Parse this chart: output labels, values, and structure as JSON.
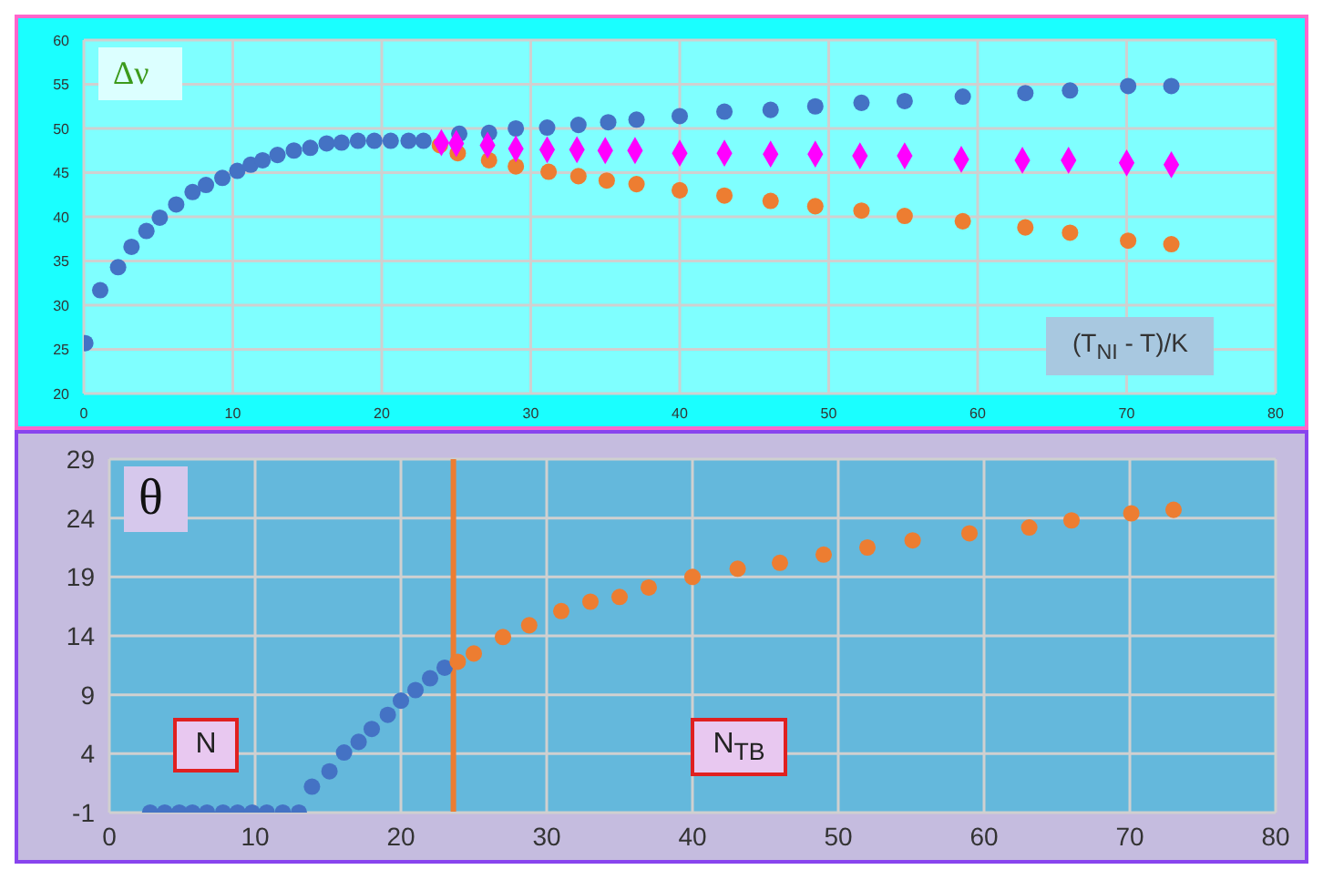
{
  "chart_data": [
    {
      "type": "scatter",
      "title": "Δν",
      "xlabel": "(T$_{NI}$ - T)/K",
      "xlim": [
        0,
        80
      ],
      "xticks": [
        0,
        10,
        20,
        30,
        40,
        50,
        60,
        70,
        80
      ],
      "ylim": [
        20,
        60
      ],
      "yticks": [
        20,
        25,
        30,
        35,
        40,
        45,
        50,
        55,
        60
      ],
      "grid": true,
      "series": [
        {
          "color": "#4472c4",
          "marker": "circle",
          "x": [
            0.1,
            1.1,
            2.3,
            3.2,
            4.2,
            5.1,
            6.2,
            7.3,
            8.2,
            9.3,
            10.3,
            11.2,
            12,
            13,
            14.1,
            15.2,
            16.3,
            17.3,
            18.4,
            19.5,
            20.6,
            21.8,
            22.8,
            25.2,
            27.2,
            29,
            31.1,
            33.2,
            35.2,
            37.1,
            40,
            43,
            46.1,
            49.1,
            52.2,
            55.1,
            59,
            63.2,
            66.2,
            70.1,
            73
          ],
          "values": [
            25.7,
            31.7,
            34.3,
            36.6,
            38.4,
            39.9,
            41.4,
            42.8,
            43.6,
            44.4,
            45.2,
            45.9,
            46.4,
            47,
            47.5,
            47.8,
            48.3,
            48.4,
            48.6,
            48.6,
            48.6,
            48.6,
            48.6,
            49.4,
            49.5,
            50,
            50.1,
            50.4,
            50.7,
            51,
            51.4,
            51.9,
            52.1,
            52.5,
            52.9,
            53.1,
            53.6,
            54,
            54.3,
            54.8,
            54.8
          ]
        },
        {
          "color": "#ed7d31",
          "marker": "circle",
          "x": [
            23.9,
            25.1,
            27.2,
            29,
            31.2,
            33.2,
            35.1,
            37.1,
            40,
            43,
            46.1,
            49.1,
            52.2,
            55.1,
            59,
            63.2,
            66.2,
            70.1,
            73
          ],
          "values": [
            48.1,
            47.2,
            46.4,
            45.7,
            45.1,
            44.6,
            44.1,
            43.7,
            43,
            42.4,
            41.8,
            41.2,
            40.7,
            40.1,
            39.5,
            38.8,
            38.2,
            37.3,
            36.9
          ]
        },
        {
          "color": "#ff00ff",
          "marker": "diamond",
          "x": [
            24,
            25,
            27.1,
            29,
            31.1,
            33.1,
            35,
            37,
            40,
            43,
            46.1,
            49.1,
            52.1,
            55.1,
            58.9,
            63,
            66.1,
            70,
            73
          ],
          "values": [
            48.4,
            48.3,
            48.1,
            47.7,
            47.6,
            47.6,
            47.5,
            47.5,
            47.2,
            47.2,
            47.1,
            47.1,
            46.9,
            46.9,
            46.5,
            46.4,
            46.4,
            46.1,
            45.9
          ]
        }
      ]
    },
    {
      "type": "scatter",
      "title": "θ",
      "annotations": [
        "N",
        "N$_{TB}$"
      ],
      "xlim": [
        0,
        80
      ],
      "xticks": [
        0,
        10,
        20,
        30,
        40,
        50,
        60,
        70,
        80
      ],
      "ylim": [
        -1,
        29
      ],
      "yticks": [
        -1,
        4,
        9,
        14,
        19,
        24,
        29
      ],
      "grid": true,
      "ref_lines": [
        {
          "axis": "x",
          "value": 23.6,
          "color": "#ed7d31"
        }
      ],
      "series": [
        {
          "color": "#4472c4",
          "marker": "circle",
          "x": [
            2.8,
            3.8,
            4.8,
            5.7,
            6.7,
            7.8,
            8.8,
            9.8,
            10.8,
            11.9,
            13,
            13.9,
            15.1,
            16.1,
            17.1,
            18,
            19.1,
            20,
            21,
            22,
            23
          ],
          "values": [
            -1,
            -1,
            -1,
            -1,
            -1,
            -1,
            -1,
            -1,
            -1,
            -1,
            -1,
            1.2,
            2.5,
            4.1,
            5,
            6.1,
            7.3,
            8.5,
            9.4,
            10.4,
            11.3
          ]
        },
        {
          "color": "#ed7d31",
          "marker": "circle",
          "x": [
            23.9,
            25,
            27,
            28.8,
            31,
            33,
            35,
            37,
            40,
            43.1,
            46,
            49,
            52,
            55.1,
            59,
            63.1,
            66,
            70.1,
            73
          ],
          "values": [
            11.8,
            12.5,
            13.9,
            14.9,
            16.1,
            16.9,
            17.3,
            18.1,
            19,
            19.7,
            20.2,
            20.9,
            21.5,
            22.1,
            22.7,
            23.2,
            23.8,
            24.4,
            24.7
          ]
        }
      ]
    }
  ]
}
